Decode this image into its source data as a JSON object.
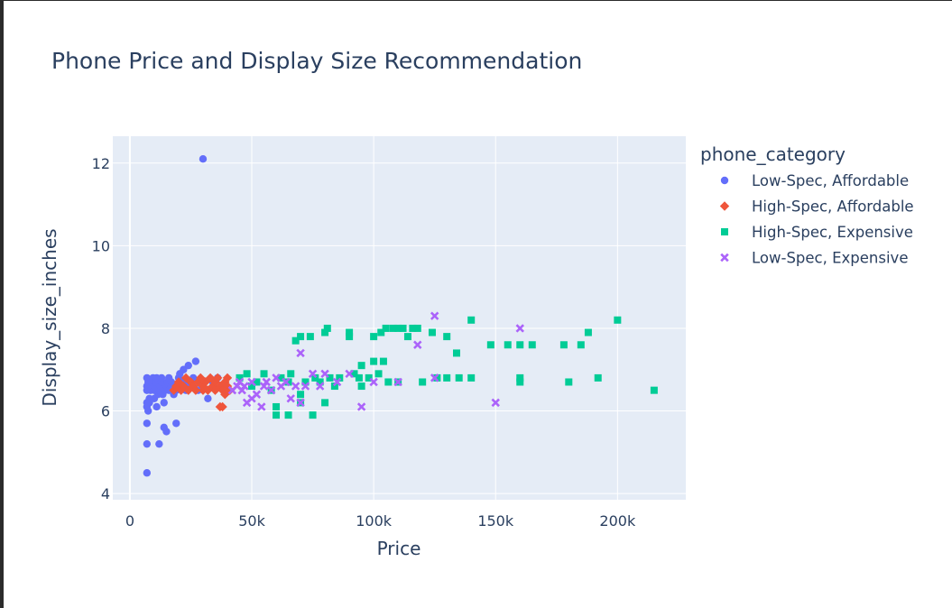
{
  "chart_data": {
    "type": "scatter",
    "title": "Phone Price and Display Size Recommendation",
    "xlabel": "Price",
    "ylabel": "Display_size_inches",
    "xlim": [
      -7000,
      228000
    ],
    "ylim": [
      3.85,
      12.65
    ],
    "x_ticks": [
      0,
      50000,
      100000,
      150000,
      200000
    ],
    "x_tick_labels": [
      "0",
      "50k",
      "100k",
      "150k",
      "200k"
    ],
    "y_ticks": [
      4,
      6,
      8,
      10,
      12
    ],
    "y_tick_labels": [
      "4",
      "6",
      "8",
      "10",
      "12"
    ],
    "grid": true,
    "legend_title": "phone_category",
    "legend_position": "right",
    "series": [
      {
        "name": "Low-Spec, Affordable",
        "color": "#636efa",
        "marker": "circle",
        "points": [
          [
            7000,
            4.5
          ],
          [
            7000,
            5.2
          ],
          [
            7000,
            5.7
          ],
          [
            7500,
            6.0
          ],
          [
            7000,
            6.1
          ],
          [
            7000,
            6.2
          ],
          [
            8000,
            6.3
          ],
          [
            7000,
            6.5
          ],
          [
            7000,
            6.6
          ],
          [
            7500,
            6.7
          ],
          [
            7000,
            6.8
          ],
          [
            8000,
            6.2
          ],
          [
            8500,
            6.5
          ],
          [
            9000,
            6.6
          ],
          [
            9000,
            6.7
          ],
          [
            9500,
            6.8
          ],
          [
            10000,
            6.3
          ],
          [
            10000,
            6.5
          ],
          [
            10000,
            6.6
          ],
          [
            10500,
            6.7
          ],
          [
            11000,
            6.8
          ],
          [
            11000,
            6.1
          ],
          [
            11500,
            6.4
          ],
          [
            12000,
            5.2
          ],
          [
            12000,
            6.5
          ],
          [
            12500,
            6.6
          ],
          [
            13000,
            6.7
          ],
          [
            13000,
            6.8
          ],
          [
            13500,
            6.4
          ],
          [
            14000,
            5.6
          ],
          [
            14000,
            6.2
          ],
          [
            14500,
            6.5
          ],
          [
            15000,
            5.5
          ],
          [
            15000,
            6.6
          ],
          [
            15500,
            6.7
          ],
          [
            16000,
            6.8
          ],
          [
            16000,
            6.5
          ],
          [
            17000,
            6.6
          ],
          [
            17000,
            6.7
          ],
          [
            18000,
            6.4
          ],
          [
            18000,
            6.6
          ],
          [
            19000,
            5.7
          ],
          [
            19000,
            6.5
          ],
          [
            20000,
            6.6
          ],
          [
            20000,
            6.8
          ],
          [
            20500,
            6.9
          ],
          [
            21000,
            6.6
          ],
          [
            22000,
            6.7
          ],
          [
            22000,
            7.0
          ],
          [
            23000,
            6.5
          ],
          [
            24000,
            6.6
          ],
          [
            24000,
            7.1
          ],
          [
            25000,
            6.7
          ],
          [
            26000,
            6.8
          ],
          [
            27000,
            7.2
          ],
          [
            28000,
            6.5
          ],
          [
            30000,
            12.1
          ],
          [
            32000,
            6.3
          ],
          [
            34000,
            6.7
          ],
          [
            36000,
            6.8
          ],
          [
            38000,
            6.6
          ]
        ]
      },
      {
        "name": "High-Spec, Affordable",
        "color": "#ef553b",
        "marker": "diamond",
        "points": [
          [
            18000,
            6.5
          ],
          [
            19000,
            6.6
          ],
          [
            20000,
            6.7
          ],
          [
            21000,
            6.5
          ],
          [
            22000,
            6.6
          ],
          [
            23000,
            6.8
          ],
          [
            24000,
            6.5
          ],
          [
            25000,
            6.7
          ],
          [
            26000,
            6.6
          ],
          [
            27000,
            6.5
          ],
          [
            28000,
            6.7
          ],
          [
            29000,
            6.8
          ],
          [
            30000,
            6.5
          ],
          [
            30000,
            6.6
          ],
          [
            31000,
            6.7
          ],
          [
            32000,
            6.5
          ],
          [
            33000,
            6.8
          ],
          [
            34000,
            6.6
          ],
          [
            35000,
            6.5
          ],
          [
            35000,
            6.7
          ],
          [
            36000,
            6.8
          ],
          [
            37000,
            6.6
          ],
          [
            37000,
            6.1
          ],
          [
            38000,
            6.1
          ],
          [
            38000,
            6.5
          ],
          [
            39000,
            6.7
          ],
          [
            39000,
            6.4
          ],
          [
            40000,
            6.6
          ],
          [
            40000,
            6.8
          ],
          [
            41000,
            6.5
          ]
        ]
      },
      {
        "name": "High-Spec, Expensive",
        "color": "#00cc96",
        "marker": "square",
        "points": [
          [
            45000,
            6.8
          ],
          [
            48000,
            6.9
          ],
          [
            50000,
            6.6
          ],
          [
            52000,
            6.7
          ],
          [
            55000,
            6.9
          ],
          [
            58000,
            6.5
          ],
          [
            60000,
            5.9
          ],
          [
            60000,
            6.1
          ],
          [
            62000,
            6.8
          ],
          [
            65000,
            5.9
          ],
          [
            65000,
            6.7
          ],
          [
            66000,
            6.9
          ],
          [
            68000,
            7.7
          ],
          [
            70000,
            6.2
          ],
          [
            70000,
            6.4
          ],
          [
            70000,
            7.8
          ],
          [
            72000,
            6.7
          ],
          [
            74000,
            7.8
          ],
          [
            75000,
            5.9
          ],
          [
            76000,
            6.8
          ],
          [
            78000,
            6.7
          ],
          [
            80000,
            7.9
          ],
          [
            80000,
            6.2
          ],
          [
            81000,
            8.0
          ],
          [
            82000,
            6.8
          ],
          [
            84000,
            6.6
          ],
          [
            86000,
            6.8
          ],
          [
            90000,
            7.8
          ],
          [
            90000,
            7.9
          ],
          [
            92000,
            6.9
          ],
          [
            94000,
            6.8
          ],
          [
            95000,
            6.6
          ],
          [
            95000,
            7.1
          ],
          [
            98000,
            6.8
          ],
          [
            100000,
            7.2
          ],
          [
            100000,
            7.8
          ],
          [
            102000,
            6.9
          ],
          [
            103000,
            7.9
          ],
          [
            104000,
            7.2
          ],
          [
            105000,
            8.0
          ],
          [
            106000,
            6.7
          ],
          [
            108000,
            8.0
          ],
          [
            110000,
            8.0
          ],
          [
            110000,
            6.7
          ],
          [
            112000,
            8.0
          ],
          [
            114000,
            7.8
          ],
          [
            116000,
            8.0
          ],
          [
            118000,
            8.0
          ],
          [
            120000,
            6.7
          ],
          [
            124000,
            7.9
          ],
          [
            126000,
            6.8
          ],
          [
            130000,
            7.8
          ],
          [
            130000,
            6.8
          ],
          [
            134000,
            7.4
          ],
          [
            135000,
            6.8
          ],
          [
            140000,
            8.2
          ],
          [
            140000,
            6.8
          ],
          [
            148000,
            7.6
          ],
          [
            155000,
            7.6
          ],
          [
            160000,
            7.6
          ],
          [
            160000,
            6.8
          ],
          [
            160000,
            6.7
          ],
          [
            165000,
            7.6
          ],
          [
            178000,
            7.6
          ],
          [
            180000,
            6.7
          ],
          [
            185000,
            7.6
          ],
          [
            188000,
            7.9
          ],
          [
            192000,
            6.8
          ],
          [
            200000,
            8.2
          ],
          [
            215000,
            6.5
          ]
        ]
      },
      {
        "name": "Low-Spec, Expensive",
        "color": "#ab63fa",
        "marker": "x",
        "points": [
          [
            42000,
            6.5
          ],
          [
            44000,
            6.6
          ],
          [
            45000,
            6.7
          ],
          [
            46000,
            6.5
          ],
          [
            47000,
            6.6
          ],
          [
            48000,
            6.2
          ],
          [
            50000,
            6.7
          ],
          [
            50000,
            6.3
          ],
          [
            52000,
            6.4
          ],
          [
            54000,
            6.1
          ],
          [
            55000,
            6.6
          ],
          [
            56000,
            6.7
          ],
          [
            58000,
            6.5
          ],
          [
            60000,
            6.8
          ],
          [
            62000,
            6.6
          ],
          [
            64000,
            6.7
          ],
          [
            66000,
            6.3
          ],
          [
            68000,
            6.6
          ],
          [
            70000,
            6.2
          ],
          [
            70000,
            7.4
          ],
          [
            72000,
            6.6
          ],
          [
            75000,
            6.9
          ],
          [
            78000,
            6.6
          ],
          [
            80000,
            6.9
          ],
          [
            85000,
            6.7
          ],
          [
            90000,
            6.9
          ],
          [
            95000,
            6.1
          ],
          [
            100000,
            6.7
          ],
          [
            110000,
            6.7
          ],
          [
            118000,
            7.6
          ],
          [
            125000,
            8.3
          ],
          [
            125000,
            6.8
          ],
          [
            150000,
            6.2
          ],
          [
            160000,
            8.0
          ]
        ]
      }
    ]
  }
}
